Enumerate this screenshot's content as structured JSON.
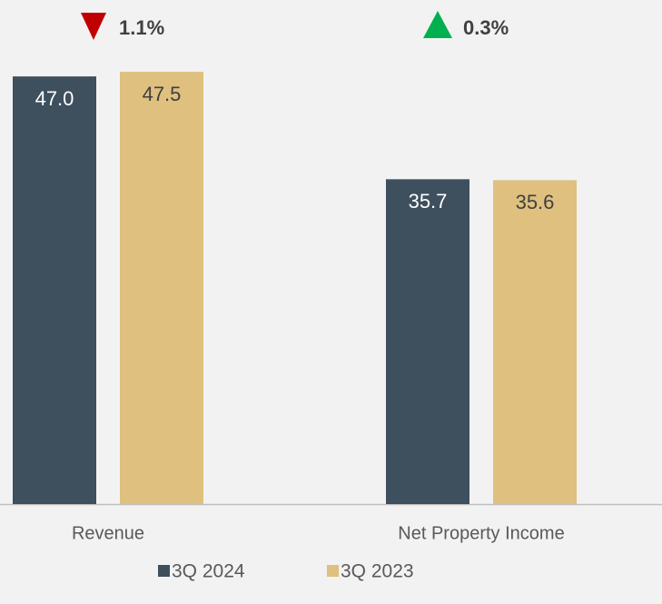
{
  "chart_data": {
    "type": "bar",
    "categories": [
      "Revenue",
      "Net Property Income"
    ],
    "series": [
      {
        "name": "3Q 2024",
        "color": "#3e4f5e",
        "label_color": "#ffffff",
        "values": [
          47.0,
          35.7
        ],
        "value_labels": [
          "47.0",
          "35.7"
        ]
      },
      {
        "name": "3Q 2023",
        "color": "#dfc07f",
        "label_color": "#404040",
        "values": [
          47.5,
          35.6
        ],
        "value_labels": [
          "47.5",
          "35.6"
        ]
      }
    ],
    "ylim": [
      0,
      55
    ],
    "annotations": [
      {
        "text": "1.1%",
        "direction": "down",
        "color": "#c00000"
      },
      {
        "text": "0.3%",
        "direction": "up",
        "color": "#00b050"
      }
    ],
    "legend": "bottom"
  }
}
